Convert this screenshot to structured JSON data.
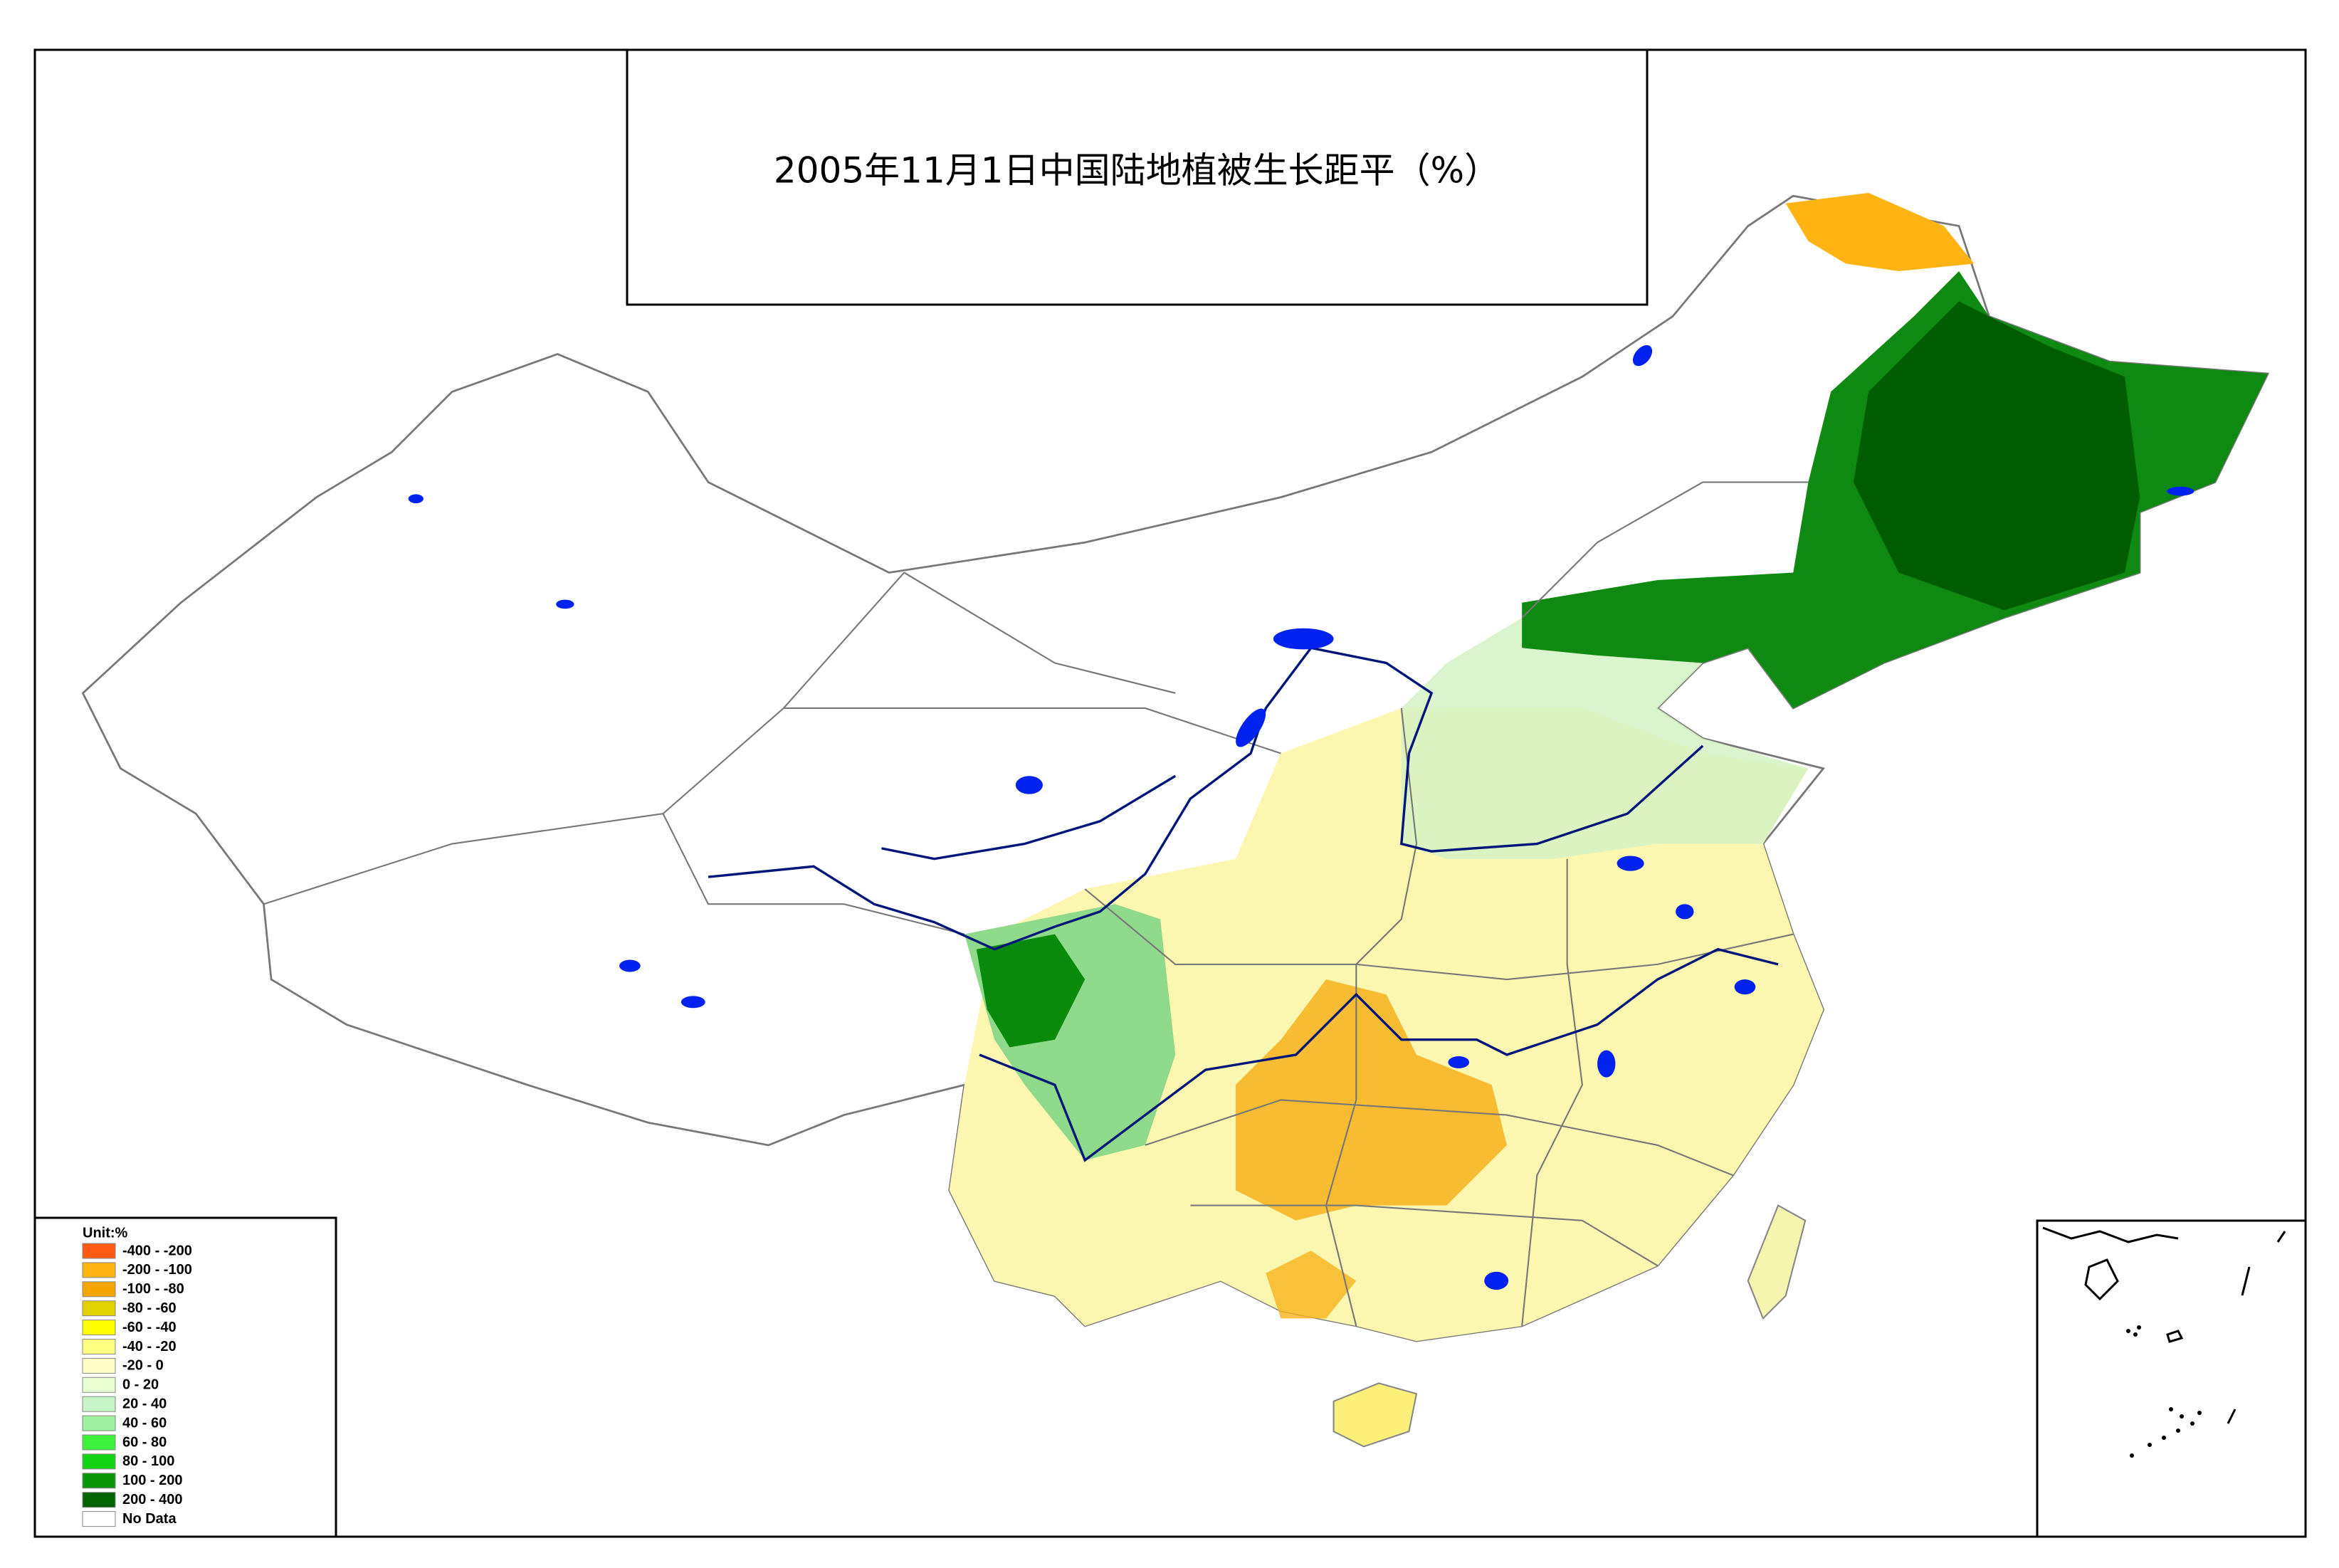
{
  "title": "2005年11月1日中国陆地植被生长距平（%）",
  "legend": {
    "title": "Unit:%",
    "items": [
      {
        "label": "-400 - -200",
        "color": "#ff5a14"
      },
      {
        "label": "-200 - -100",
        "color": "#ffb414"
      },
      {
        "label": "-100 - -80",
        "color": "#f5a500"
      },
      {
        "label": "-80 - -60",
        "color": "#e1d200"
      },
      {
        "label": "-60 - -40",
        "color": "#ffff00"
      },
      {
        "label": "-40 - -20",
        "color": "#ffff82"
      },
      {
        "label": "-20 - 0",
        "color": "#ffffc8"
      },
      {
        "label": "0 - 20",
        "color": "#e8ffd2"
      },
      {
        "label": "20 - 40",
        "color": "#c8f5c8"
      },
      {
        "label": "40 - 60",
        "color": "#a0f0a0"
      },
      {
        "label": "60 - 80",
        "color": "#3cf03c"
      },
      {
        "label": "80 - 100",
        "color": "#14d214"
      },
      {
        "label": "100 - 200",
        "color": "#0a960a"
      },
      {
        "label": "200 - 400",
        "color": "#006400"
      },
      {
        "label": "No Data",
        "color": "#ffffff"
      }
    ]
  }
}
